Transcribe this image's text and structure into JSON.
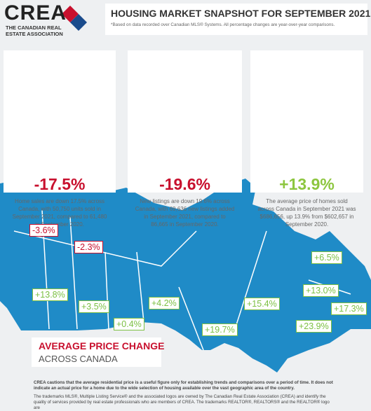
{
  "logo": {
    "name": "CREA",
    "line1": "THE CANADIAN REAL",
    "line2": "ESTATE ASSOCIATION"
  },
  "header": {
    "title": "HOUSING MARKET SNAPSHOT FOR SEPTEMBER 2021",
    "subtitle": "*Based on data recorded over Canadian MLS® Systems. All percentage changes are year-over-year comparisons."
  },
  "cards": [
    {
      "value": "-17.5%",
      "text": "Home sales are down 17.5% across Canada, with 50,750 units sold in September 2021, compared to 61,480 in September 2020."
    },
    {
      "value": "-19.6%",
      "text": "New listings are down 19.6% across Canada, with 69,636 new listings added in September 2021, compared to 86,665 in September 2020."
    },
    {
      "value": "+13.9%",
      "text": "The average price of homes sold across Canada in September 2021 was $686,656, up 13.9% from $602,657 in September 2020."
    }
  ],
  "map": {
    "title": "AVERAGE PRICE CHANGE",
    "subtitle": "ACROSS CANADA",
    "labels": [
      "-3.6%",
      "-2.3%",
      "+13.8%",
      "+3.5%",
      "+0.4%",
      "+4.2%",
      "+19.7%",
      "+15.4%",
      "+6.5%",
      "+13.0%",
      "+17.3%",
      "+23.9%"
    ]
  },
  "footer": {
    "caution": "CREA cautions that the average residential price is a useful figure only for establishing trends and comparisons over a period of time. It does not indicate an actual price for a home due to the wide selection of housing available over the vast geographic area of the country.",
    "trademark": "The trademarks MLS®, Multiple Listing Service® and the associated logos are owned by The Canadian Real Estate Association (CREA) and identify the quality of services provided by real estate professionals who are members of CREA. The trademarks REALTOR®, REALTORS® and the REALTOR® logo are"
  }
}
